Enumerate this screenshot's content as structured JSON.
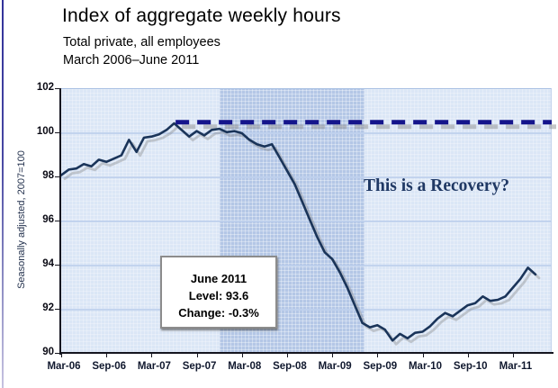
{
  "header": {
    "title": "Index of aggregate weekly hours",
    "subtitle1": "Total private, all employees",
    "subtitle2": "March 2006–June 2011"
  },
  "annotation": {
    "text": "This is a Recovery?"
  },
  "callout": {
    "line1": "June 2011",
    "line2": "Level: 93.6",
    "line3": "Change: -0.3%"
  },
  "colors": {
    "line": "#1a3459",
    "dashed_reference": "#15158c",
    "recession_band": "#b4c7e6",
    "plot_background": "#dbe6f6",
    "annotation_text": "#1f3864",
    "gridline": "#bdcfec"
  },
  "chart_data": {
    "type": "line",
    "title": "Index of aggregate weekly hours",
    "ylabel": "Seasonally adjusted, 2007=100",
    "xlabel": "",
    "x_start": "Mar-2006",
    "x_end": "Jun-2011",
    "frequency": "monthly",
    "x_tick_labels": [
      "Mar-06",
      "Sep-06",
      "Mar-07",
      "Sep-07",
      "Mar-08",
      "Sep-08",
      "Mar-09",
      "Sep-09",
      "Mar-10",
      "Sep-10",
      "Mar-11"
    ],
    "y_ticks": [
      102,
      100,
      98,
      96,
      94,
      92,
      90
    ],
    "ylim": [
      90,
      102
    ],
    "grid": true,
    "legend": false,
    "series": [
      {
        "name": "Index of aggregate weekly hours, total private",
        "values": [
          98.1,
          98.35,
          98.4,
          98.6,
          98.5,
          98.8,
          98.7,
          98.85,
          99.0,
          99.7,
          99.15,
          99.8,
          99.85,
          99.95,
          100.15,
          100.45,
          100.15,
          99.85,
          100.1,
          99.9,
          100.15,
          100.2,
          100.05,
          100.1,
          100.0,
          99.7,
          99.5,
          99.4,
          99.5,
          98.9,
          98.3,
          97.7,
          96.9,
          96.1,
          95.3,
          94.6,
          94.3,
          93.7,
          93.0,
          92.2,
          91.4,
          91.2,
          91.3,
          91.1,
          90.6,
          90.9,
          90.7,
          90.95,
          91.0,
          91.25,
          91.6,
          91.85,
          91.7,
          91.95,
          92.2,
          92.3,
          92.6,
          92.4,
          92.45,
          92.6,
          93.0,
          93.4,
          93.9,
          93.6
        ]
      }
    ],
    "reference_line": {
      "value": 100.5,
      "style": "dashed",
      "start_month_index": 15.2
    },
    "recession_band": {
      "start_month_index": 21,
      "end_month_index": 40.3
    },
    "final_point": {
      "label": "June 2011",
      "level": 93.6,
      "change": "-0.3%"
    }
  }
}
